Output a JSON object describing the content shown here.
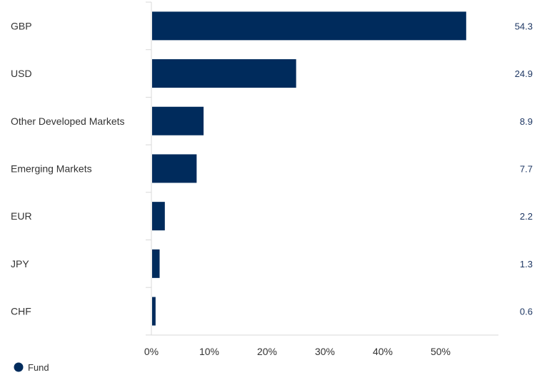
{
  "chart_data": {
    "type": "bar",
    "orientation": "horizontal",
    "categories": [
      "GBP",
      "USD",
      "Other Developed Markets",
      "Emerging Markets",
      "EUR",
      "JPY",
      "CHF"
    ],
    "series": [
      {
        "name": "Fund",
        "values": [
          54.3,
          24.9,
          8.9,
          7.7,
          2.2,
          1.3,
          0.6
        ],
        "color": "#002b5c"
      }
    ],
    "data_labels": [
      "54.3",
      "24.9",
      "8.9",
      "7.7",
      "2.2",
      "1.3",
      "0.6"
    ],
    "x_ticks": [
      "0%",
      "10%",
      "20%",
      "30%",
      "40%",
      "50%"
    ],
    "xlim": [
      0,
      60
    ],
    "grid": false,
    "legend_position": "bottom-left"
  }
}
